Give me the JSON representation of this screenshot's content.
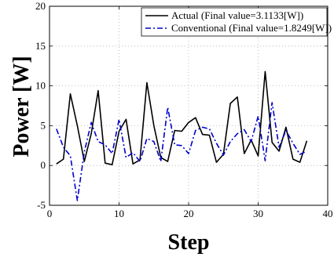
{
  "chart_data": {
    "type": "line",
    "xlabel": "Step",
    "ylabel": "Power [W]",
    "xlim": [
      0,
      40
    ],
    "ylim": [
      -5,
      20
    ],
    "x_ticks": [
      0,
      10,
      20,
      30,
      40
    ],
    "y_ticks": [
      -5,
      0,
      5,
      10,
      15,
      20
    ],
    "grid": true,
    "legend_position": "top-right",
    "series": [
      {
        "name": "Actual (Final value=3.1133[W])",
        "color": "#000000",
        "style": "solid",
        "x": [
          1,
          2,
          3,
          4,
          5,
          6,
          7,
          8,
          9,
          10,
          11,
          12,
          13,
          14,
          15,
          16,
          17,
          18,
          19,
          20,
          21,
          22,
          23,
          24,
          25,
          26,
          27,
          28,
          29,
          30,
          31,
          32,
          33,
          34,
          35,
          36,
          37
        ],
        "y": [
          0.2,
          0.8,
          9.0,
          5.0,
          0.5,
          4.0,
          9.4,
          0.3,
          0.1,
          4.3,
          5.8,
          0.2,
          0.7,
          10.4,
          5.0,
          1.0,
          0.5,
          4.4,
          4.3,
          5.4,
          6.0,
          3.9,
          3.8,
          0.4,
          1.4,
          7.8,
          8.6,
          1.5,
          3.2,
          1.2,
          11.8,
          2.9,
          1.8,
          4.8,
          0.8,
          0.4,
          3.1
        ]
      },
      {
        "name": "Conventional (Final value=1.8249[W])",
        "color": "#0000cc",
        "style": "dashdot",
        "x": [
          1,
          2,
          3,
          4,
          5,
          6,
          7,
          8,
          9,
          10,
          11,
          12,
          13,
          14,
          15,
          16,
          17,
          18,
          19,
          20,
          21,
          22,
          23,
          24,
          25,
          26,
          27,
          28,
          29,
          30,
          31,
          32,
          33,
          34,
          35,
          36,
          37
        ],
        "y": [
          4.6,
          2.3,
          1.2,
          -4.4,
          1.7,
          5.4,
          3.0,
          2.6,
          1.5,
          5.8,
          1.0,
          1.6,
          0.5,
          3.4,
          3.0,
          0.5,
          7.3,
          2.6,
          2.5,
          1.5,
          4.4,
          4.8,
          4.6,
          2.8,
          1.3,
          3.0,
          4.0,
          4.5,
          3.0,
          6.2,
          0.6,
          7.9,
          2.3,
          4.4,
          2.8,
          1.4,
          1.8
        ]
      }
    ]
  }
}
